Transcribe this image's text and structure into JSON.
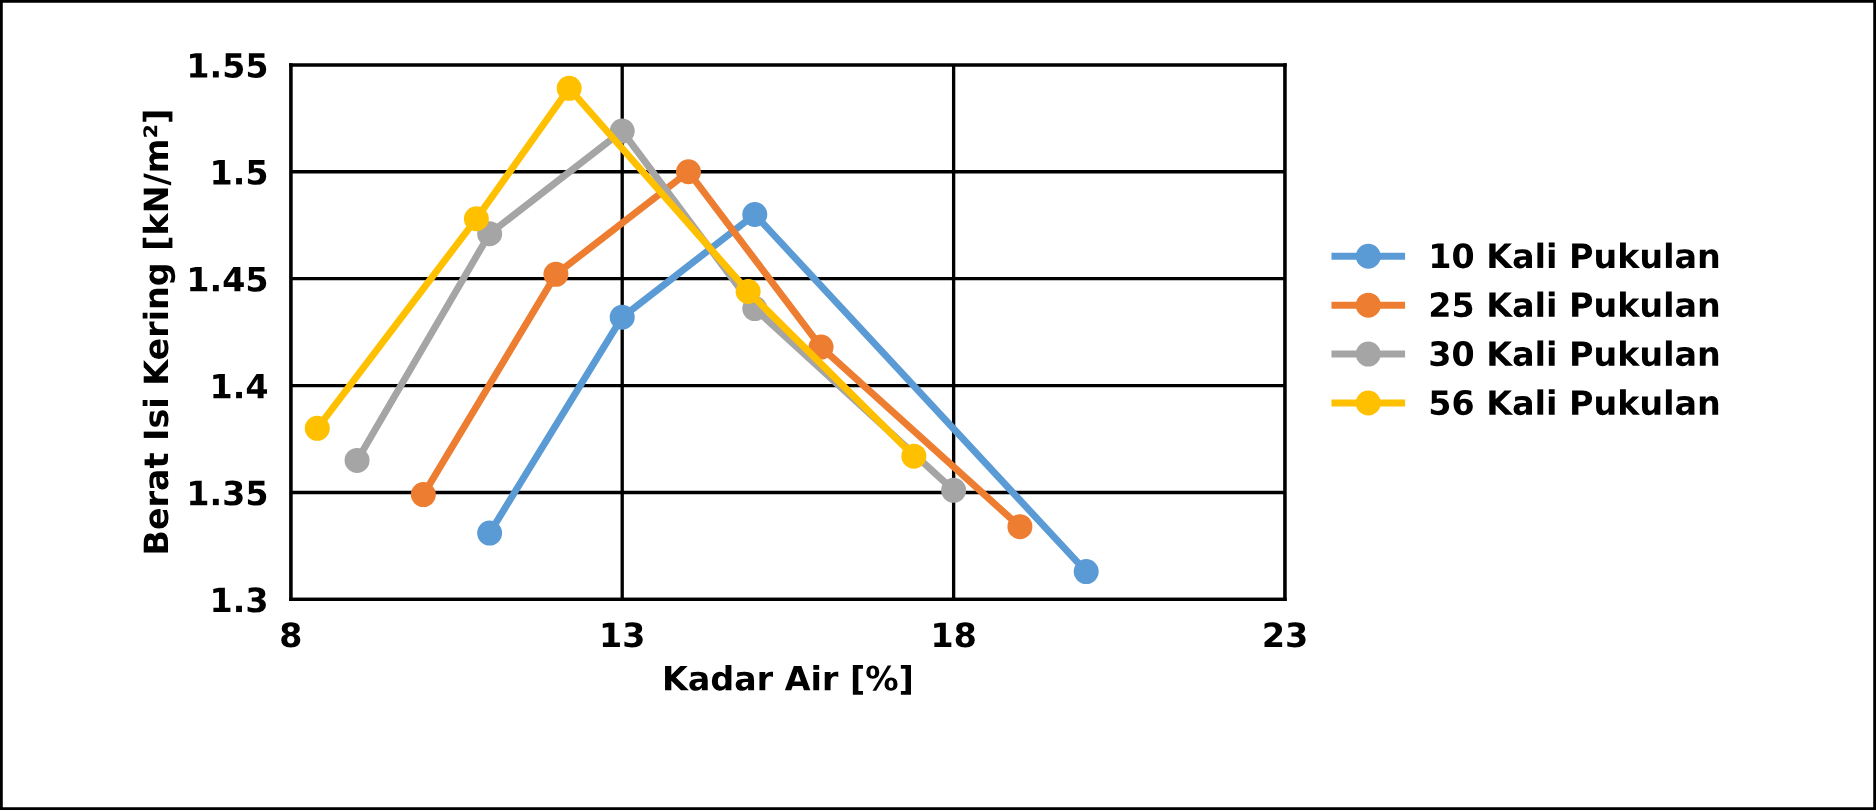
{
  "chart_data": {
    "type": "line",
    "xlabel": "Kadar Air [%]",
    "ylabel": "Berat Isi Kering [kN/m²]",
    "xlim": [
      8,
      23
    ],
    "xticks": [
      8,
      13,
      18,
      23
    ],
    "ylim": [
      1.3,
      1.55
    ],
    "yticks": [
      1.3,
      1.35,
      1.4,
      1.45,
      1.5,
      1.55
    ],
    "grid": true,
    "legend": "right",
    "marker": "circle",
    "line_style": "solid",
    "series": [
      {
        "name": "10 Kali Pukulan",
        "color": "#5b9bd5",
        "x": [
          11.0,
          13.0,
          15.0,
          20.0
        ],
        "values": [
          1.331,
          1.432,
          1.48,
          1.313
        ]
      },
      {
        "name": "25 Kali Pukulan",
        "color": "#ed7d31",
        "x": [
          10.0,
          12.0,
          14.0,
          16.0,
          19.0
        ],
        "values": [
          1.349,
          1.452,
          1.5,
          1.418,
          1.334
        ]
      },
      {
        "name": "30 Kali Pukulan",
        "color": "#a5a5a5",
        "x": [
          9.0,
          11.0,
          13.0,
          15.0,
          18.0
        ],
        "values": [
          1.365,
          1.471,
          1.519,
          1.436,
          1.351
        ]
      },
      {
        "name": "56 Kali Pukulan",
        "color": "#ffc000",
        "x": [
          8.4,
          10.8,
          12.2,
          14.9,
          17.4
        ],
        "values": [
          1.38,
          1.478,
          1.539,
          1.444,
          1.367
        ]
      }
    ]
  }
}
